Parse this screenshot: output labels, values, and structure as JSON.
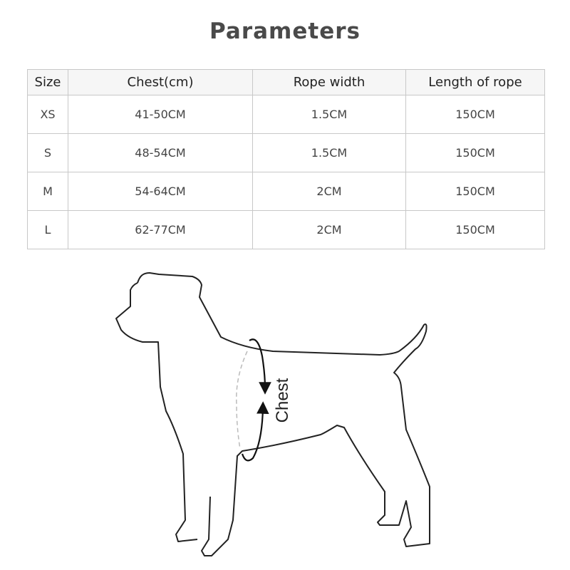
{
  "title": "Parameters",
  "table": {
    "headers": [
      "Size",
      "Chest(cm)",
      "Rope width",
      "Length of rope"
    ],
    "rows": [
      [
        "XS",
        "41-50CM",
        "1.5CM",
        "150CM"
      ],
      [
        "S",
        "48-54CM",
        "1.5CM",
        "150CM"
      ],
      [
        "M",
        "54-64CM",
        "2CM",
        "150CM"
      ],
      [
        "L",
        "62-77CM",
        "2CM",
        "150CM"
      ]
    ]
  },
  "diagram": {
    "chest_label": "Chest"
  }
}
